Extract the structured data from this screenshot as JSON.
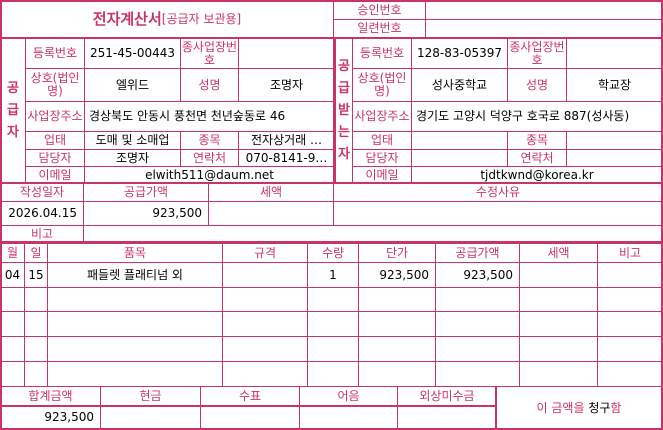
{
  "header": {
    "title": "전자계산서",
    "subtitle": "[공급자 보관용]",
    "approval_label": "승인번호",
    "approval_value": "",
    "serial_label": "일련번호",
    "serial_value": ""
  },
  "supplier": {
    "side_label": "공급자",
    "reg_label": "등록번호",
    "reg_value": "251-45-00443",
    "branch_label": "종사업장번호",
    "branch_value": "",
    "name_label": "상호(법인명)",
    "name_value": "엘위드",
    "rep_label": "성명",
    "rep_value": "조명자",
    "addr_label": "사업장주소",
    "addr_value": "경상북도 안동시 풍천면 천년숲동로 46",
    "type_label": "업태",
    "type_value": "도매 및 소매업",
    "item_label": "종목",
    "item_value": "전자상거래 …",
    "contact_label": "담당자",
    "contact_value": "조명자",
    "phone_label": "연락처",
    "phone_value": "070-8141-9…",
    "email_label": "이메일",
    "email_value": "elwith511@daum.net"
  },
  "buyer": {
    "side_label": "공급받는자",
    "reg_label": "등록번호",
    "reg_value": "128-83-05397",
    "branch_label": "종사업장번호",
    "branch_value": "",
    "name_label": "상호(법인명)",
    "name_value": "성사중학교",
    "rep_label": "성명",
    "rep_value": "학교장",
    "addr_label": "사업장주소",
    "addr_value": "경기도 고양시 덕양구 호국로 887(성사동)",
    "type_label": "업태",
    "type_value": "",
    "item_label": "종목",
    "item_value": "",
    "contact_label": "담당자",
    "contact_value": "",
    "phone_label": "연락처",
    "phone_value": "",
    "email_label": "이메일",
    "email_value": "tjdtkwnd@korea.kr"
  },
  "summary": {
    "date_label": "작성일자",
    "date_value": "2026.04.15",
    "supply_label": "공급가액",
    "supply_value": "923,500",
    "tax_label": "세액",
    "tax_value": "",
    "reason_label": "수정사유",
    "reason_value": "",
    "note_label": "비고",
    "note_value": ""
  },
  "items": {
    "headers": [
      "월",
      "일",
      "품목",
      "규격",
      "수량",
      "단가",
      "공급가액",
      "세액",
      "비고"
    ],
    "rows": [
      [
        "04",
        "15",
        "패들렛 플래티넘 외",
        "",
        "1",
        "923,500",
        "923,500",
        "",
        ""
      ],
      [
        "",
        "",
        "",
        "",
        "",
        "",
        "",
        "",
        ""
      ],
      [
        "",
        "",
        "",
        "",
        "",
        "",
        "",
        "",
        ""
      ],
      [
        "",
        "",
        "",
        "",
        "",
        "",
        "",
        "",
        ""
      ],
      [
        "",
        "",
        "",
        "",
        "",
        "",
        "",
        "",
        ""
      ]
    ]
  },
  "totals": {
    "headers": [
      "합계금액",
      "현금",
      "수표",
      "어음",
      "외상미수금"
    ],
    "values": [
      "923,500",
      "",
      "",
      "",
      ""
    ],
    "claim_prefix": "이 금액을 ",
    "claim_word": "청구",
    "claim_suffix": "함"
  },
  "colors": {
    "accent": "#c8336a"
  }
}
